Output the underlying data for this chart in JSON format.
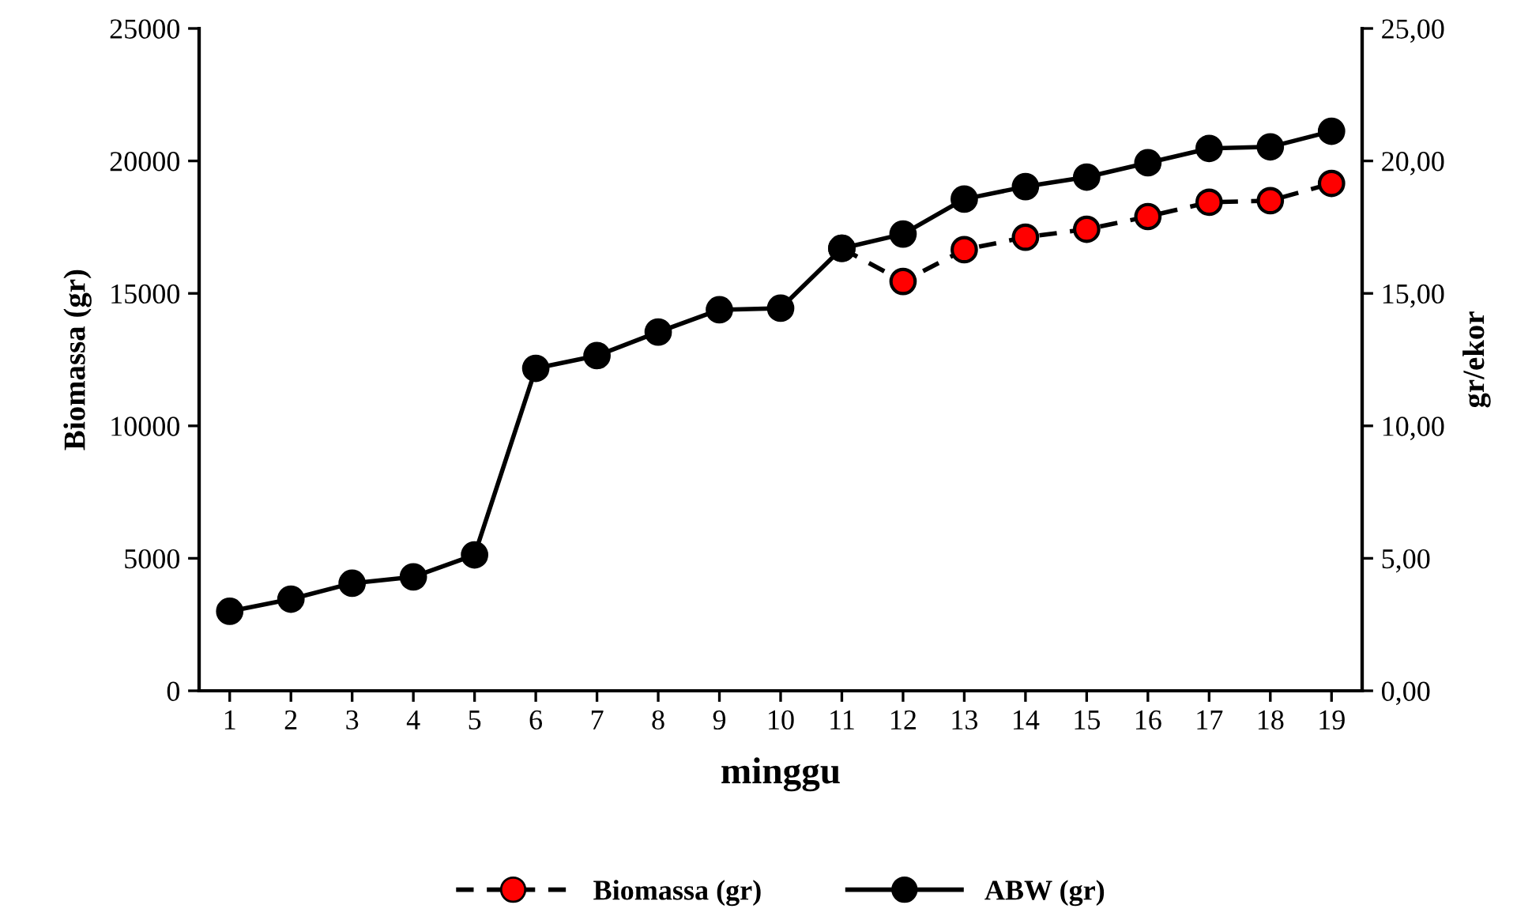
{
  "chart_data": {
    "type": "line",
    "xlabel": "minggu",
    "ylabel": "Biomassa (gr)",
    "y2label": "gr/ekor",
    "categories": [
      "1",
      "2",
      "3",
      "4",
      "5",
      "6",
      "7",
      "8",
      "9",
      "10",
      "11",
      "12",
      "13",
      "14",
      "15",
      "16",
      "17",
      "18",
      "19"
    ],
    "series": [
      {
        "name": "Biomassa (gr)",
        "color": "#ff0000",
        "line_style": "dashed",
        "values": [
          null,
          null,
          null,
          null,
          null,
          null,
          null,
          null,
          null,
          null,
          16700,
          15450,
          16650,
          17120,
          17420,
          17900,
          18440,
          18500,
          19150
        ]
      },
      {
        "name": "ABW (gr)",
        "color": "#000000",
        "line_style": "solid",
        "axis": "y2",
        "values": [
          3.0,
          3.46,
          4.06,
          4.3,
          5.13,
          12.17,
          12.65,
          13.54,
          14.38,
          14.44,
          16.7,
          17.24,
          18.56,
          19.03,
          19.39,
          19.93,
          20.47,
          20.53,
          21.12
        ]
      }
    ],
    "ylim": [
      0,
      25000
    ],
    "yticks": [
      0,
      5000,
      10000,
      15000,
      20000,
      25000
    ],
    "y2lim": [
      0,
      25
    ],
    "y2ticks": [
      {
        "value": 0,
        "label": "0,00"
      },
      {
        "value": 5,
        "label": "5,00"
      },
      {
        "value": 10,
        "label": "10,00"
      },
      {
        "value": 15,
        "label": "15,00"
      },
      {
        "value": 20,
        "label": "20,00"
      },
      {
        "value": 25,
        "label": "25,00"
      }
    ],
    "marker": "circle",
    "grid": false,
    "legend": "bottom"
  }
}
